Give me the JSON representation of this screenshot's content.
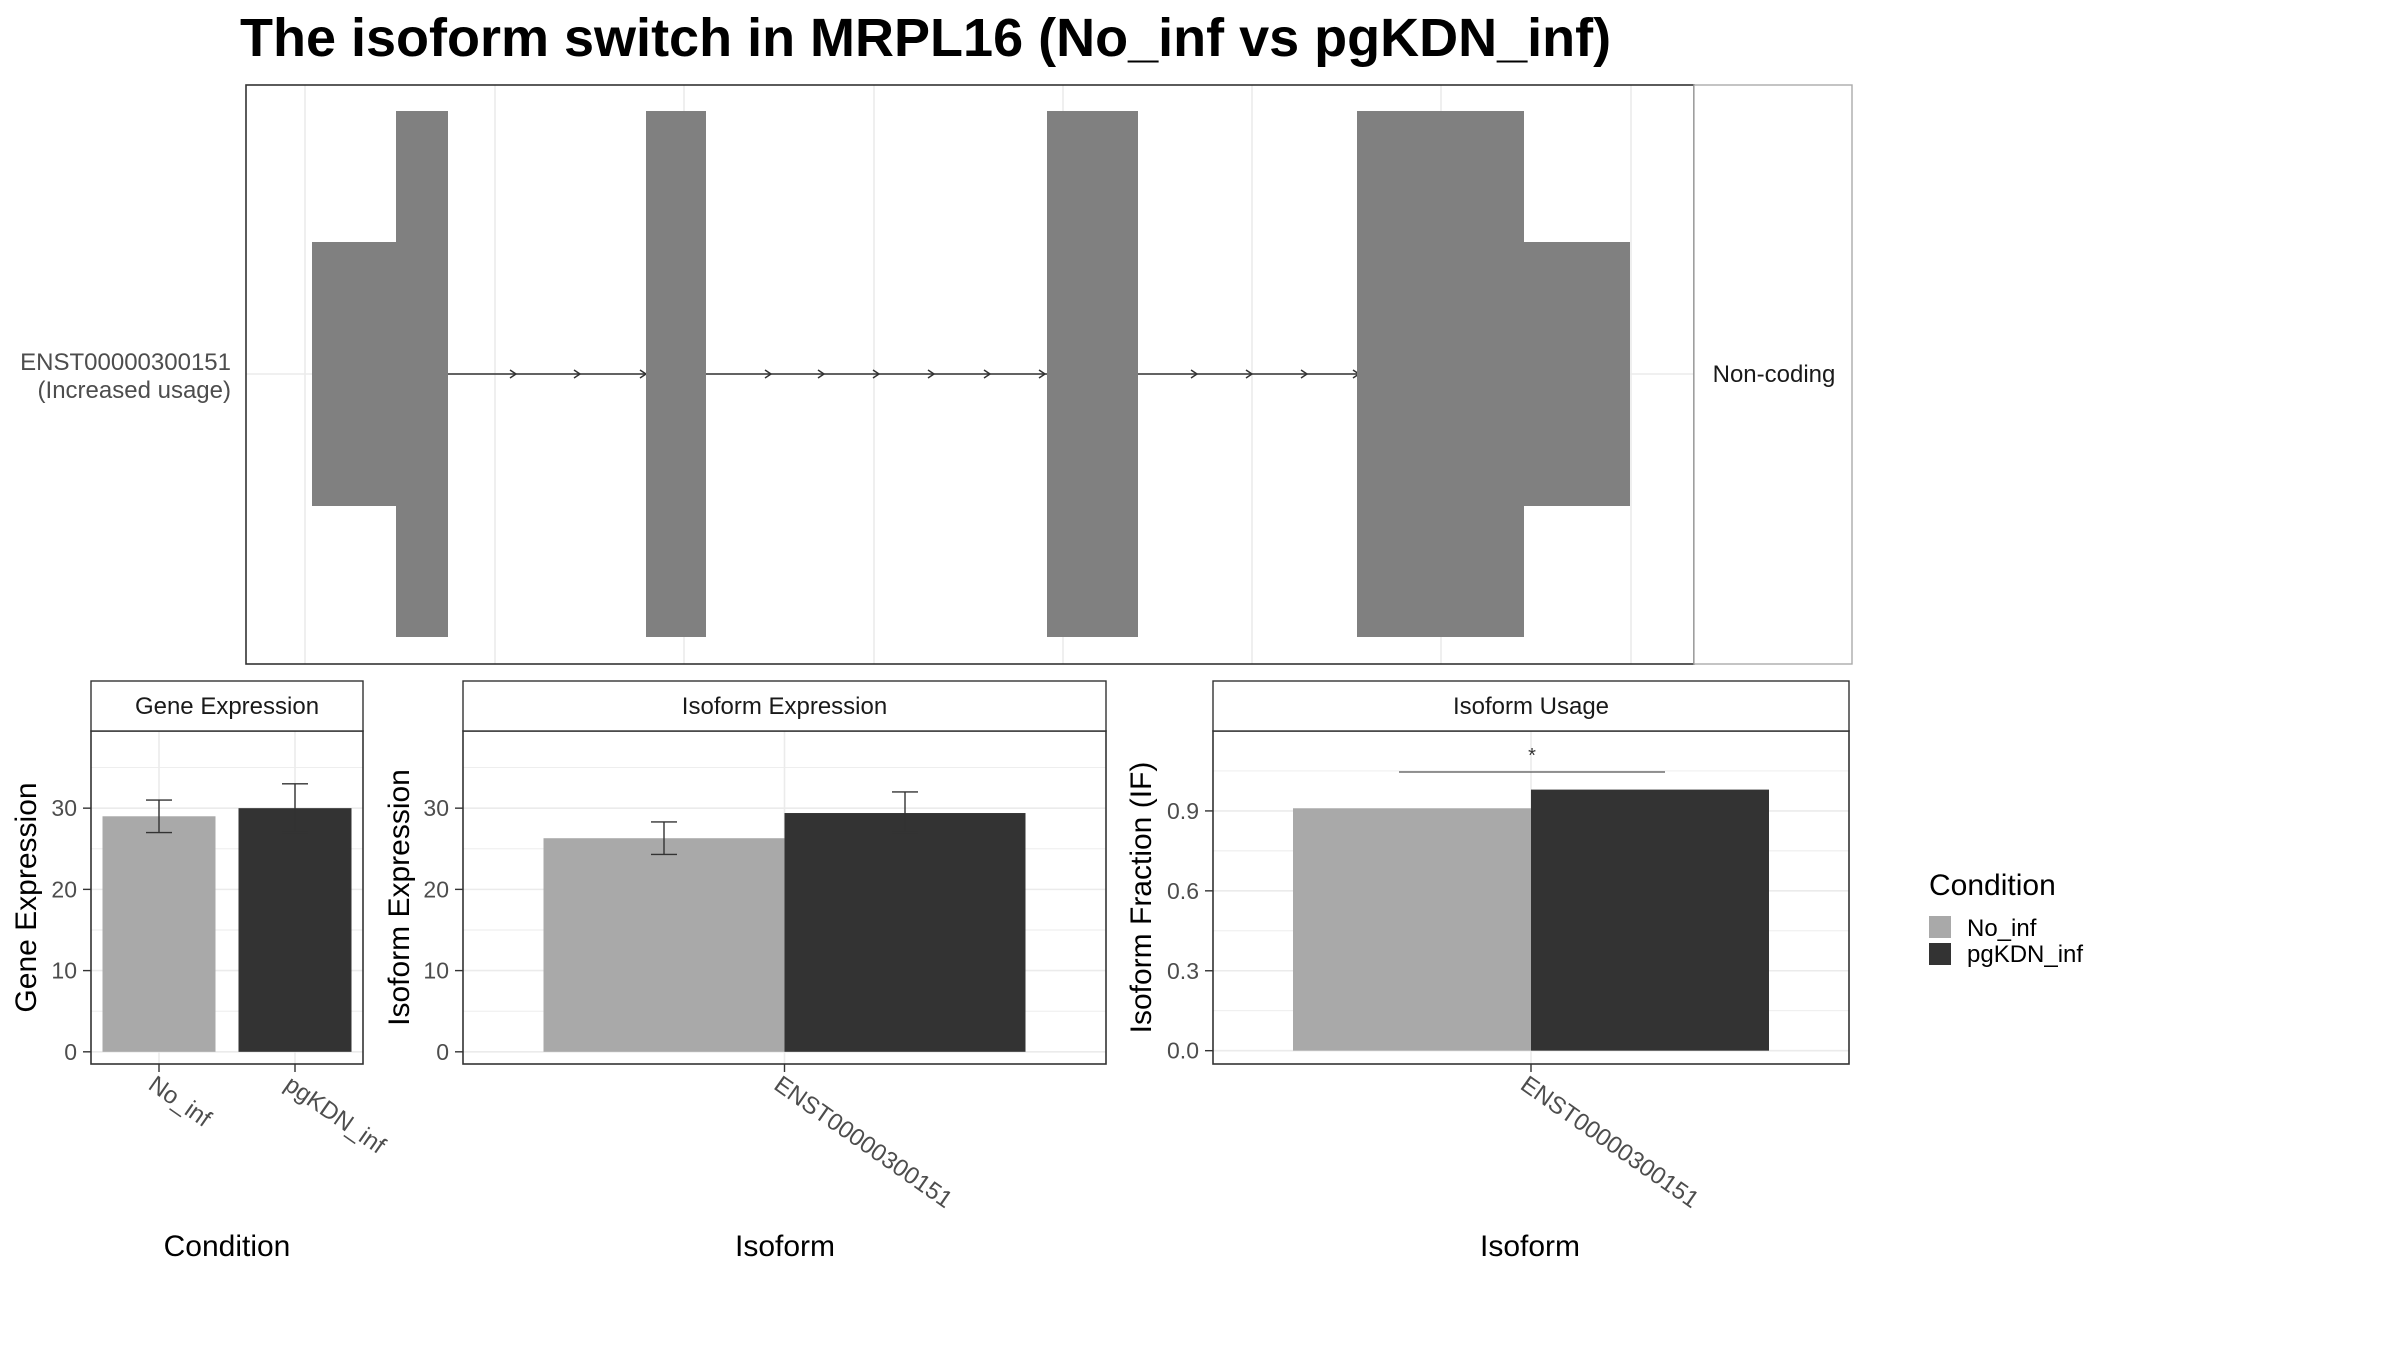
{
  "title": "The isoform switch in MRPL16 (No_inf vs pgKDN_inf)",
  "colors": {
    "no_inf": "#A9A9A9",
    "pgkdn_inf": "#333333",
    "exon": "#808080",
    "panel_border": "#333333",
    "strip_border": "#AAAAAA",
    "grid": "#EBEBEB",
    "axis_text": "#4D4D4D"
  },
  "structure": {
    "isoform_id": "ENST00000300151",
    "isoform_note": "(Increased usage)",
    "facet_label": "Non-coding"
  },
  "legend": {
    "title": "Condition",
    "items": [
      {
        "label": "No_inf",
        "color": "#A9A9A9"
      },
      {
        "label": "pgKDN_inf",
        "color": "#333333"
      }
    ]
  },
  "chart_data": [
    {
      "type": "bar",
      "strip": "Gene Expression",
      "xlabel": "Condition",
      "ylabel": "Gene Expression",
      "categories": [
        "No_inf",
        "pgKDN_inf"
      ],
      "values": [
        29.0,
        30.0
      ],
      "error_low": [
        27.0,
        27.0
      ],
      "error_high": [
        31.0,
        33.0
      ],
      "colors": [
        "#A9A9A9",
        "#333333"
      ],
      "yticks": [
        0,
        10,
        20,
        30
      ],
      "ylim": [
        -1.5,
        39.5
      ],
      "grid": true
    },
    {
      "type": "bar",
      "strip": "Isoform Expression",
      "xlabel": "Isoform",
      "ylabel": "Isoform Expression",
      "categories": [
        "ENST00000300151"
      ],
      "series": [
        {
          "name": "No_inf",
          "values": [
            26.3
          ],
          "error_low": [
            24.3
          ],
          "error_high": [
            28.3
          ]
        },
        {
          "name": "pgKDN_inf",
          "values": [
            29.4
          ],
          "error_low": [
            27.0
          ],
          "error_high": [
            32.0
          ]
        }
      ],
      "yticks": [
        0,
        10,
        20,
        30
      ],
      "ylim": [
        -1.5,
        39.5
      ],
      "grid": true
    },
    {
      "type": "bar",
      "strip": "Isoform Usage",
      "xlabel": "Isoform",
      "ylabel": "Isoform Fraction (IF)",
      "categories": [
        "ENST00000300151"
      ],
      "series": [
        {
          "name": "No_inf",
          "values": [
            0.91
          ]
        },
        {
          "name": "pgKDN_inf",
          "values": [
            0.98
          ]
        }
      ],
      "significance": "*",
      "yticks": [
        0.0,
        0.3,
        0.6,
        0.9
      ],
      "yticklabels": [
        "0.0",
        "0.3",
        "0.6",
        "0.9"
      ],
      "ylim": [
        -0.05,
        1.2
      ],
      "grid": true
    }
  ]
}
